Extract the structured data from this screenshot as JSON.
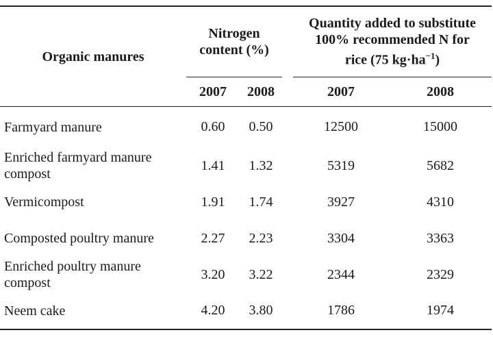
{
  "table": {
    "header": {
      "organic_manures": "Organic manures",
      "nitrogen_line1": "Nitrogen",
      "nitrogen_line2": "content (%)",
      "quantity_line1": "Quantity added to substitute",
      "quantity_line2": "100% recommended N for",
      "quantity_line3_pre": "rice (75 kg·ha",
      "quantity_line3_sup": "−1",
      "quantity_line3_post": ")",
      "years": [
        "2007",
        "2008",
        "2007",
        "2008"
      ]
    },
    "rows": [
      {
        "name_line1": "Farmyard manure",
        "name_line2": "",
        "n2007": "0.60",
        "n2008": "0.50",
        "q2007": "12500",
        "q2008": "15000"
      },
      {
        "name_line1": "Enriched farmyard manure",
        "name_line2": "compost",
        "n2007": "1.41",
        "n2008": "1.32",
        "q2007": "5319",
        "q2008": "5682"
      },
      {
        "name_line1": "Vermicompost",
        "name_line2": "",
        "n2007": "1.91",
        "n2008": "1.74",
        "q2007": "3927",
        "q2008": "4310"
      },
      {
        "name_line1": "Composted poultry manure",
        "name_line2": "",
        "n2007": "2.27",
        "n2008": "2.23",
        "q2007": "3304",
        "q2008": "3363"
      },
      {
        "name_line1": "Enriched poultry manure",
        "name_line2": "compost",
        "n2007": "3.20",
        "n2008": "3.22",
        "q2007": "2344",
        "q2008": "2329"
      },
      {
        "name_line1": "Neem cake",
        "name_line2": "",
        "n2007": "4.20",
        "n2008": "3.80",
        "q2007": "1786",
        "q2008": "1974"
      }
    ]
  }
}
